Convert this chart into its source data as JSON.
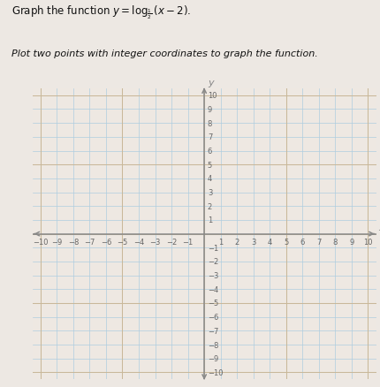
{
  "subtitle": "Plot two points with integer coordinates to graph the function.",
  "xlim": [
    -10.5,
    10.5
  ],
  "ylim": [
    -10.5,
    10.5
  ],
  "background_color": "#eee8e2",
  "grid_color_blue": "#aecde0",
  "grid_color_tan": "#c9b89a",
  "axis_color": "#888888",
  "tick_label_color": "#666666",
  "text_color": "#111111",
  "page_bg": "#ede8e3",
  "figsize": [
    4.3,
    4.39
  ],
  "dpi": 100
}
